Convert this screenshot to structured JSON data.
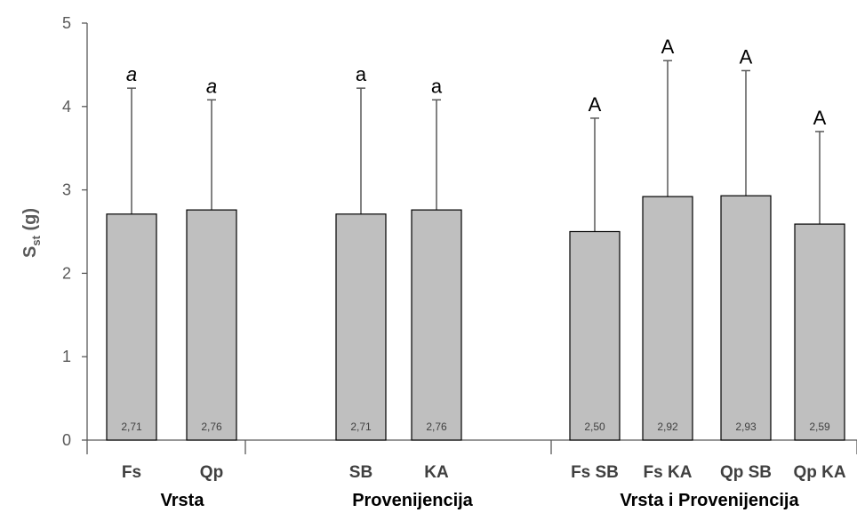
{
  "chart_data": {
    "type": "bar",
    "ylabel_main": "S",
    "ylabel_sub": "st",
    "ylabel_unit": " (g)",
    "ylim": [
      0,
      5
    ],
    "yticks": [
      0,
      1,
      2,
      3,
      4,
      5
    ],
    "grid": false,
    "colors": {
      "bar_fill": "#bfbfbf",
      "bar_stroke": "#000000",
      "error_bar": "#595959",
      "axis": "#595959"
    },
    "groups": [
      {
        "label": "Vrsta",
        "sig_italic": true,
        "bars": [
          {
            "category": "Fs",
            "value": 2.71,
            "value_label": "2,71",
            "error_top": 4.22,
            "sig": "a"
          },
          {
            "category": "Qp",
            "value": 2.76,
            "value_label": "2,76",
            "error_top": 4.08,
            "sig": "a"
          }
        ]
      },
      {
        "label": "Provenijencija",
        "sig_italic": false,
        "bars": [
          {
            "category": "SB",
            "value": 2.71,
            "value_label": "2,71",
            "error_top": 4.22,
            "sig": "a"
          },
          {
            "category": "KA",
            "value": 2.76,
            "value_label": "2,76",
            "error_top": 4.08,
            "sig": "a"
          }
        ]
      },
      {
        "label": "Vrsta i Provenijencija",
        "sig_italic": false,
        "bars": [
          {
            "category": "Fs SB",
            "value": 2.5,
            "value_label": "2,50",
            "error_top": 3.86,
            "sig": "A"
          },
          {
            "category": "Fs KA",
            "value": 2.92,
            "value_label": "2,92",
            "error_top": 4.55,
            "sig": "A"
          },
          {
            "category": "Qp SB",
            "value": 2.93,
            "value_label": "2,93",
            "error_top": 4.43,
            "sig": "A"
          },
          {
            "category": "Qp KA",
            "value": 2.59,
            "value_label": "2,59",
            "error_top": 3.7,
            "sig": "A"
          }
        ]
      }
    ]
  }
}
